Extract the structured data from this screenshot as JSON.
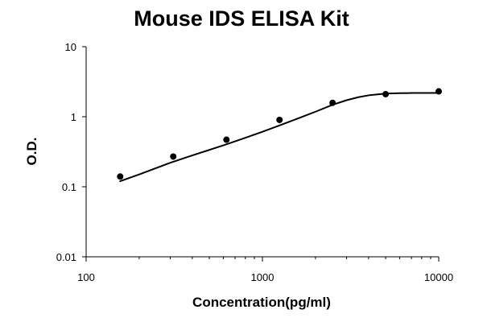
{
  "chart_data": {
    "type": "scatter",
    "title": "Mouse IDS ELISA Kit",
    "xlabel": "Concentration(pg/ml)",
    "ylabel": "O.D.",
    "x_scale": "log",
    "y_scale": "log",
    "xlim": [
      100,
      10000
    ],
    "ylim": [
      0.01,
      10
    ],
    "x_ticks": [
      100,
      1000,
      10000
    ],
    "x_tick_labels": [
      "100",
      "1000",
      "10000"
    ],
    "y_ticks": [
      0.01,
      0.1,
      1,
      10
    ],
    "y_tick_labels": [
      "0.01",
      "0.1",
      "1",
      "10"
    ],
    "grid": false,
    "legend": "none",
    "series": [
      {
        "x": [
          156,
          312,
          625,
          1250,
          2500,
          5000,
          10000
        ],
        "y": [
          0.14,
          0.27,
          0.47,
          0.9,
          1.58,
          2.1,
          2.3
        ]
      }
    ],
    "fit_curve": {
      "x": [
        156,
        200,
        300,
        400,
        600,
        800,
        1000,
        1250,
        1600,
        2000,
        2500,
        3000,
        3500,
        4000,
        5000,
        6000,
        7000,
        8000,
        9000,
        10000
      ],
      "y": [
        0.12,
        0.15,
        0.22,
        0.28,
        0.39,
        0.5,
        0.61,
        0.75,
        0.95,
        1.18,
        1.48,
        1.72,
        1.9,
        2.02,
        2.14,
        2.17,
        2.18,
        2.18,
        2.18,
        2.19
      ]
    },
    "colors": {
      "line": "#000000",
      "marker": "#000000",
      "axis": "#000000"
    }
  }
}
